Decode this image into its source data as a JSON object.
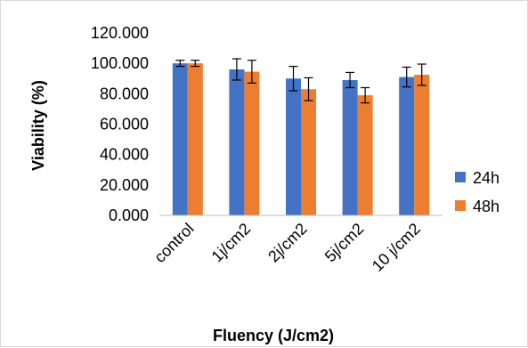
{
  "chart_data": {
    "type": "bar",
    "title": "",
    "xlabel": "Fluency (J/cm2)",
    "ylabel": "Viability (%)",
    "categories": [
      "control",
      "1j/cm2",
      "2j/cm2",
      "5j/cm2",
      "10 j/cm2"
    ],
    "ylim": [
      0,
      120
    ],
    "y_ticks": [
      0,
      20,
      40,
      60,
      80,
      100,
      120
    ],
    "y_tick_labels": [
      "0.000",
      "20.000",
      "40.000",
      "60.000",
      "80.000",
      "100.000",
      "120.000"
    ],
    "grid": false,
    "legend_position": "right",
    "series": [
      {
        "name": "24h",
        "color": "#4472C4",
        "values": [
          100,
          96,
          90,
          89,
          91
        ],
        "errors": [
          2,
          7,
          8,
          5,
          6.5
        ]
      },
      {
        "name": "48h",
        "color": "#ED7D31",
        "values": [
          100,
          94.5,
          83,
          79,
          92.5
        ],
        "errors": [
          2,
          7.5,
          7.5,
          5,
          7
        ]
      }
    ]
  }
}
